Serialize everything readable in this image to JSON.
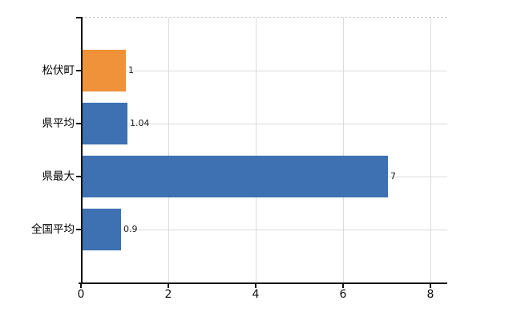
{
  "chart_data": {
    "type": "bar",
    "orientation": "horizontal",
    "title": "",
    "xlabel": "",
    "ylabel": "",
    "categories": [
      "松伏町",
      "県平均",
      "県最大",
      "全国平均"
    ],
    "values": [
      1,
      1.04,
      7,
      0.9
    ],
    "value_labels": [
      "1",
      "1.04",
      "7",
      "0.9"
    ],
    "bar_colors": [
      "#ef9239",
      "#3e71b2",
      "#3e71b2",
      "#3e71b2"
    ],
    "x_ticks": [
      0,
      2,
      4,
      6,
      8
    ],
    "x_tick_labels": [
      "0",
      "2",
      "4",
      "6",
      "8"
    ],
    "xlim": [
      0,
      8.4
    ],
    "grid": true,
    "gridline_color": "#d9ddd9",
    "axis_color": "#111111",
    "top_border_style": "dashed",
    "legend": null
  },
  "colors": {
    "accent_orange": "#ef9239",
    "accent_blue": "#3e71b2",
    "background": "#ffffff"
  }
}
